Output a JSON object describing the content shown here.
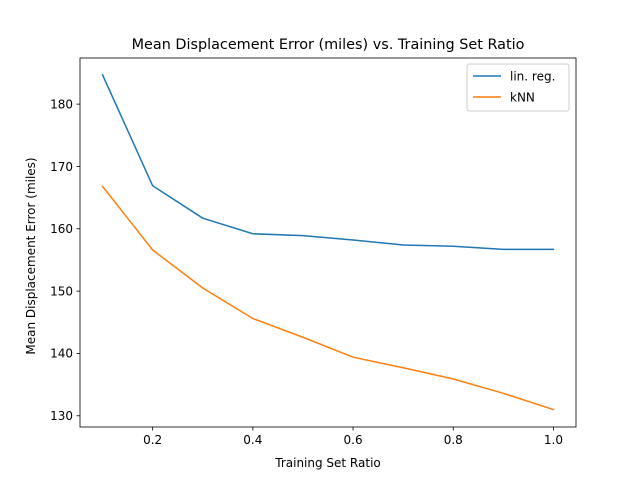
{
  "chart_data": {
    "type": "line",
    "title": "Mean Displacement Error (miles) vs. Training Set Ratio",
    "xlabel": "Training Set Ratio",
    "ylabel": "Mean Displacement Error (miles)",
    "x": [
      0.1,
      0.2,
      0.3,
      0.4,
      0.5,
      0.6,
      0.7,
      0.8,
      0.9,
      1.0
    ],
    "series": [
      {
        "name": "lin. reg.",
        "color": "#1f77b4",
        "values": [
          184.7,
          166.9,
          161.7,
          159.2,
          158.9,
          158.2,
          157.4,
          157.2,
          156.7,
          156.7
        ]
      },
      {
        "name": "kNN",
        "color": "#ff7f0e",
        "values": [
          166.8,
          156.6,
          150.5,
          145.6,
          142.6,
          139.4,
          137.7,
          135.9,
          133.6,
          131.0
        ]
      }
    ],
    "xlim": [
      0.055,
      1.045
    ],
    "ylim": [
      128.2,
      187.4
    ],
    "xticks": [
      0.2,
      0.4,
      0.6,
      0.8,
      1.0
    ],
    "xtick_labels": [
      "0.2",
      "0.4",
      "0.6",
      "0.8",
      "1.0"
    ],
    "yticks": [
      130,
      140,
      150,
      160,
      170,
      180
    ],
    "ytick_labels": [
      "130",
      "140",
      "150",
      "160",
      "170",
      "180"
    ],
    "grid": false,
    "legend_position": "top-right"
  }
}
